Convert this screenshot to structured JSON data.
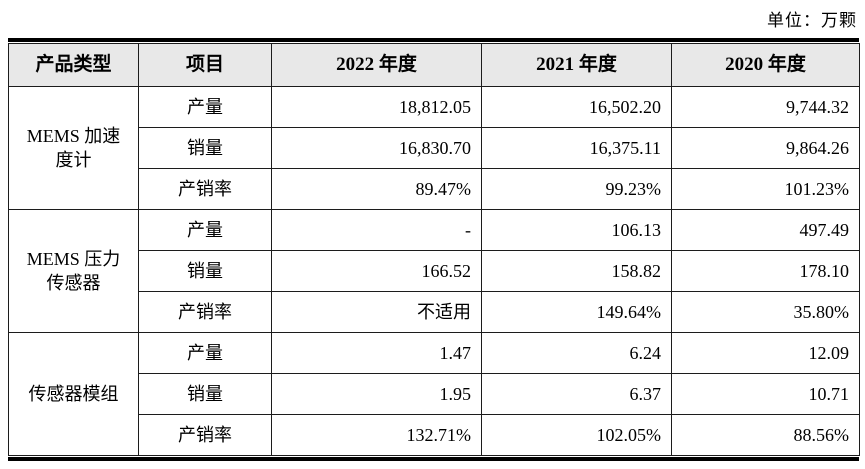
{
  "page": {
    "unit_label": "单位：万颗"
  },
  "table": {
    "headers": {
      "product_type": "产品类型",
      "item": "项目",
      "y2022": "2022 年度",
      "y2021": "2021 年度",
      "y2020": "2020 年度"
    },
    "groups": [
      {
        "product": "MEMS 加速度计",
        "rows": [
          {
            "item": "产量",
            "y2022": "18,812.05",
            "y2021": "16,502.20",
            "y2020": "9,744.32"
          },
          {
            "item": "销量",
            "y2022": "16,830.70",
            "y2021": "16,375.11",
            "y2020": "9,864.26"
          },
          {
            "item": "产销率",
            "y2022": "89.47%",
            "y2021": "99.23%",
            "y2020": "101.23%"
          }
        ]
      },
      {
        "product": "MEMS 压力传感器",
        "rows": [
          {
            "item": "产量",
            "y2022": "-",
            "y2021": "106.13",
            "y2020": "497.49"
          },
          {
            "item": "销量",
            "y2022": "166.52",
            "y2021": "158.82",
            "y2020": "178.10"
          },
          {
            "item": "产销率",
            "y2022": "不适用",
            "y2021": "149.64%",
            "y2020": "35.80%"
          }
        ]
      },
      {
        "product": "传感器模组",
        "rows": [
          {
            "item": "产量",
            "y2022": "1.47",
            "y2021": "6.24",
            "y2020": "12.09"
          },
          {
            "item": "销量",
            "y2022": "1.95",
            "y2021": "6.37",
            "y2020": "10.71"
          },
          {
            "item": "产销率",
            "y2022": "132.71%",
            "y2021": "102.05%",
            "y2020": "88.56%"
          }
        ]
      }
    ]
  },
  "colors": {
    "header_bg": "#e8e8e8",
    "border": "#1c1c1c",
    "text": "#000000",
    "thick_rule": "#000000"
  }
}
